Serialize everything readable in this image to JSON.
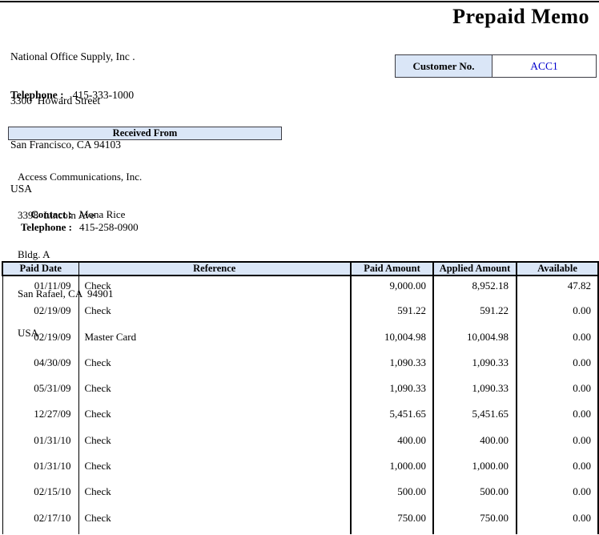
{
  "title": "Prepaid Memo",
  "company": {
    "name": "National Office Supply, Inc .",
    "address_lines": [
      "3300  Howard Street",
      "San Francisco, CA 94103",
      "USA"
    ],
    "telephone_label": "Telephone :",
    "telephone": "415-333-1000"
  },
  "customer": {
    "label": "Customer No.",
    "value": "ACC1"
  },
  "received_from": {
    "header": "Received From",
    "name": "Access Communications, Inc.",
    "address_lines": [
      "3398  Lincoln Ave",
      "Bldg. A",
      "San Rafael, CA  94901",
      "USA"
    ],
    "contact_label": "Contact :",
    "contact": "Mona Rice",
    "telephone_label": "Telephone :",
    "telephone": "415-258-0900"
  },
  "table": {
    "columns": [
      "Paid Date",
      "Reference",
      "Paid Amount",
      "Applied Amount",
      "Available"
    ],
    "rows": [
      [
        "01/11/09",
        "Check",
        "9,000.00",
        "8,952.18",
        "47.82"
      ],
      [
        "02/19/09",
        "Check",
        "591.22",
        "591.22",
        "0.00"
      ],
      [
        "02/19/09",
        "Master Card",
        "10,004.98",
        "10,004.98",
        "0.00"
      ],
      [
        "04/30/09",
        "Check",
        "1,090.33",
        "1,090.33",
        "0.00"
      ],
      [
        "05/31/09",
        "Check",
        "1,090.33",
        "1,090.33",
        "0.00"
      ],
      [
        "12/27/09",
        "Check",
        "5,451.65",
        "5,451.65",
        "0.00"
      ],
      [
        "01/31/10",
        "Check",
        "400.00",
        "400.00",
        "0.00"
      ],
      [
        "01/31/10",
        "Check",
        "1,000.00",
        "1,000.00",
        "0.00"
      ],
      [
        "02/15/10",
        "Check",
        "500.00",
        "500.00",
        "0.00"
      ],
      [
        "02/17/10",
        "Check",
        "750.00",
        "750.00",
        "0.00"
      ]
    ],
    "cell_names": [
      "paid-date-cell",
      "reference-cell",
      "paid-amount-cell",
      "applied-amount-cell",
      "available-cell"
    ]
  },
  "colors": {
    "header_bg": "#dae6f7",
    "accent_blue_text": "#0000cc",
    "border_dark": "#3c3c44"
  }
}
